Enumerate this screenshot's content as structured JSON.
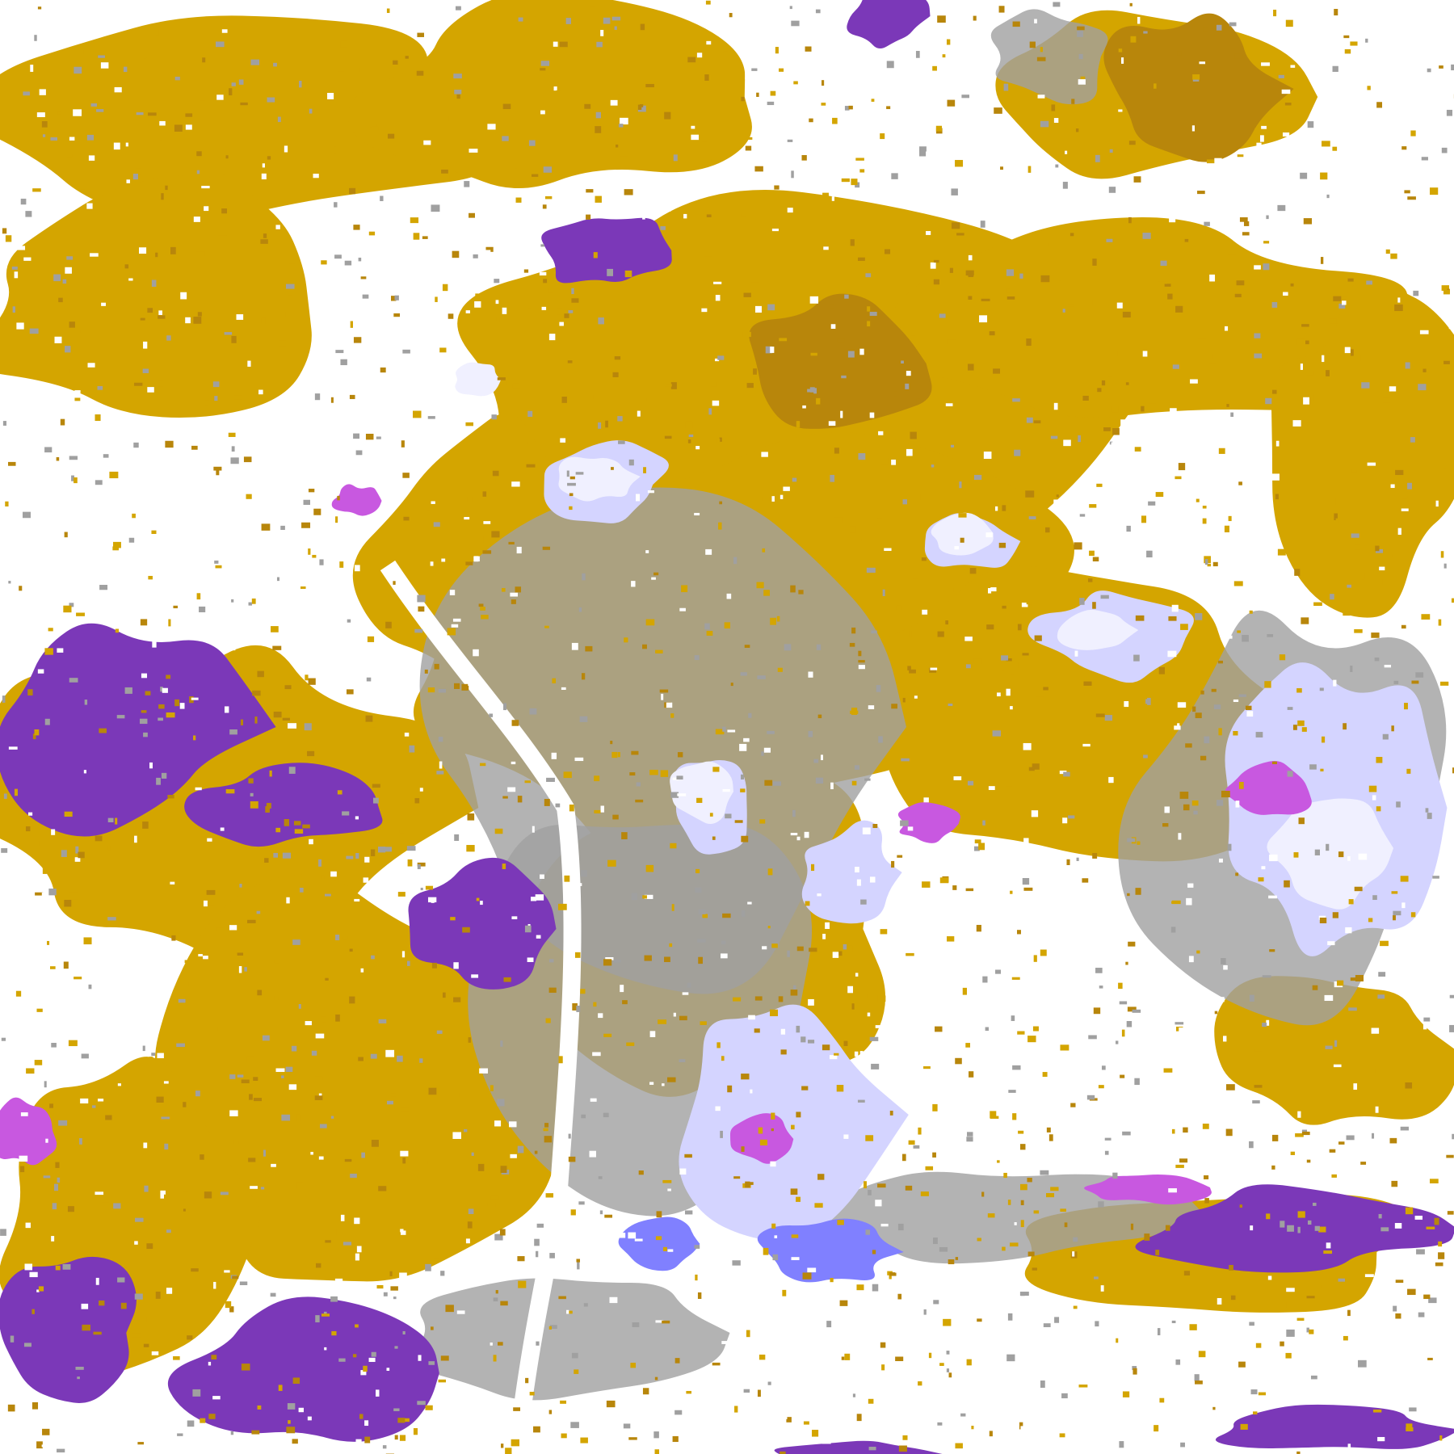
{
  "map": {
    "kind": "satellite cloud-type classification imagery",
    "palette": {
      "clear": "#ffffff",
      "low_cloud_gold": "#D4A500",
      "low_cloud_dark_gold": "#B8860B",
      "mid_cloud_gray": "#A0A0A0",
      "high_cloud_lavender": "#D4D4FF",
      "high_cloud_blue": "#8080FF",
      "very_high_pale": "#F0F0FF",
      "purple_layer": "#7B38B8",
      "magenta_layer": "#C858E0"
    }
  }
}
